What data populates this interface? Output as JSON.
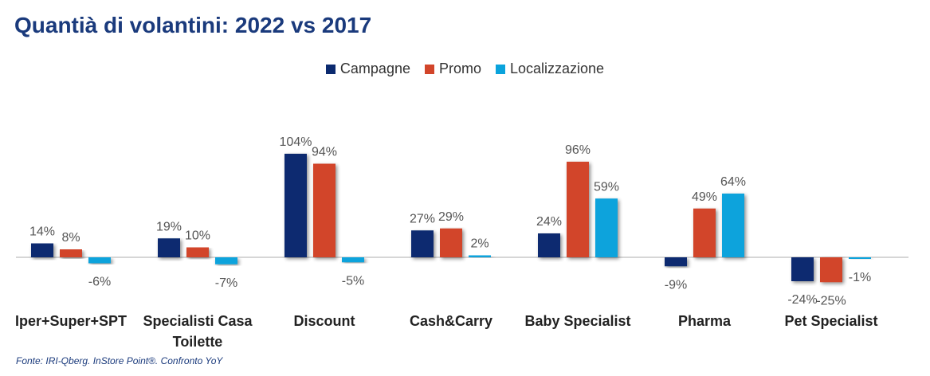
{
  "title": "Quantià di volantini: 2022 vs 2017",
  "source": "Fonte: IRI-Qberg. InStore Point®. Confronto YoY",
  "colors": {
    "Campagne": "#0b2a6f",
    "Promo": "#d2452a",
    "Localizzazione": "#0aa3dc"
  },
  "chart_data": {
    "type": "bar",
    "categories": [
      "Iper+Super+SPT",
      "Specialisti Casa Toilette",
      "Discount",
      "Cash&Carry",
      "Baby Specialist",
      "Pharma",
      "Pet Specialist"
    ],
    "series": [
      {
        "name": "Campagne",
        "values": [
          14,
          19,
          104,
          27,
          24,
          -9,
          -24
        ]
      },
      {
        "name": "Promo",
        "values": [
          8,
          10,
          94,
          29,
          96,
          49,
          -25
        ]
      },
      {
        "name": "Localizzazione",
        "values": [
          -6,
          -7,
          -5,
          2,
          59,
          64,
          -1
        ]
      }
    ],
    "value_suffix": "%",
    "legend_position": "top-center",
    "grid": false
  }
}
